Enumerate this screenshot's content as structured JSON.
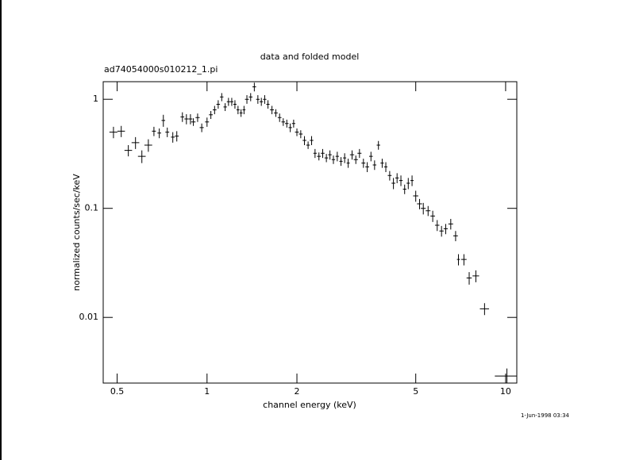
{
  "chart_data": {
    "type": "scatter",
    "title": "data and folded model",
    "subtitle": "ad74054000s010212_1.pi",
    "xlabel": "channel energy (keV)",
    "ylabel": "normalized counts/sec/keV",
    "annotation": "1-Jun-1998 03:34",
    "xscale": "log",
    "yscale": "log",
    "xlim": [
      0.449,
      10.9
    ],
    "ylim": [
      0.0025,
      1.45
    ],
    "xticks": [
      0.5,
      1,
      2,
      5,
      10
    ],
    "yticks": [
      0.01,
      0.1,
      1
    ],
    "color": "#000000",
    "x": [
      0.486,
      0.516,
      0.545,
      0.576,
      0.605,
      0.636,
      0.664,
      0.692,
      0.714,
      0.736,
      0.768,
      0.792,
      0.827,
      0.853,
      0.88,
      0.9,
      0.93,
      0.96,
      1.0,
      1.03,
      1.06,
      1.09,
      1.12,
      1.15,
      1.18,
      1.21,
      1.24,
      1.27,
      1.3,
      1.33,
      1.36,
      1.4,
      1.44,
      1.48,
      1.52,
      1.56,
      1.6,
      1.65,
      1.7,
      1.75,
      1.8,
      1.85,
      1.9,
      1.95,
      2.0,
      2.06,
      2.12,
      2.18,
      2.24,
      2.3,
      2.37,
      2.44,
      2.51,
      2.58,
      2.65,
      2.73,
      2.81,
      2.89,
      2.97,
      3.06,
      3.15,
      3.24,
      3.34,
      3.44,
      3.54,
      3.64,
      3.75,
      3.86,
      3.97,
      4.09,
      4.21,
      4.33,
      4.46,
      4.59,
      4.72,
      4.86,
      5.0,
      5.15,
      5.3,
      5.5,
      5.7,
      5.9,
      6.1,
      6.3,
      6.55,
      6.8,
      6.95,
      7.25,
      7.55,
      7.95,
      8.5,
      10.1
    ],
    "xerr": [
      0.015,
      0.015,
      0.016,
      0.017,
      0.018,
      0.019,
      0.01,
      0.01,
      0.01,
      0.011,
      0.011,
      0.012,
      0.012,
      0.013,
      0.013,
      0.015,
      0.015,
      0.015,
      0.015,
      0.015,
      0.015,
      0.015,
      0.015,
      0.015,
      0.015,
      0.015,
      0.015,
      0.015,
      0.015,
      0.015,
      0.02,
      0.02,
      0.02,
      0.02,
      0.02,
      0.02,
      0.02,
      0.025,
      0.025,
      0.025,
      0.025,
      0.025,
      0.025,
      0.025,
      0.03,
      0.03,
      0.03,
      0.03,
      0.03,
      0.03,
      0.035,
      0.035,
      0.035,
      0.035,
      0.035,
      0.035,
      0.035,
      0.035,
      0.035,
      0.05,
      0.05,
      0.05,
      0.05,
      0.05,
      0.05,
      0.05,
      0.05,
      0.05,
      0.05,
      0.06,
      0.06,
      0.06,
      0.06,
      0.06,
      0.06,
      0.06,
      0.1,
      0.1,
      0.1,
      0.1,
      0.1,
      0.1,
      0.1,
      0.1,
      0.12,
      0.12,
      0.08,
      0.15,
      0.15,
      0.2,
      0.3,
      0.9
    ],
    "values": [
      0.5,
      0.51,
      0.34,
      0.4,
      0.3,
      0.38,
      0.51,
      0.49,
      0.64,
      0.5,
      0.45,
      0.46,
      0.69,
      0.66,
      0.66,
      0.62,
      0.68,
      0.55,
      0.62,
      0.72,
      0.8,
      0.9,
      1.05,
      0.85,
      0.95,
      0.95,
      0.9,
      0.8,
      0.75,
      0.8,
      1.0,
      1.05,
      1.3,
      1.0,
      0.95,
      1.0,
      0.9,
      0.8,
      0.75,
      0.68,
      0.62,
      0.6,
      0.55,
      0.6,
      0.5,
      0.48,
      0.42,
      0.38,
      0.42,
      0.32,
      0.3,
      0.32,
      0.29,
      0.31,
      0.28,
      0.3,
      0.27,
      0.29,
      0.26,
      0.31,
      0.28,
      0.32,
      0.26,
      0.24,
      0.3,
      0.25,
      0.38,
      0.26,
      0.24,
      0.2,
      0.17,
      0.19,
      0.18,
      0.15,
      0.17,
      0.18,
      0.13,
      0.11,
      0.1,
      0.095,
      0.085,
      0.07,
      0.062,
      0.065,
      0.072,
      0.056,
      0.034,
      0.034,
      0.023,
      0.024,
      0.012,
      0.0029
    ],
    "yerr": [
      0.06,
      0.06,
      0.04,
      0.05,
      0.04,
      0.05,
      0.05,
      0.05,
      0.08,
      0.05,
      0.05,
      0.05,
      0.07,
      0.07,
      0.07,
      0.05,
      0.06,
      0.05,
      0.06,
      0.06,
      0.07,
      0.08,
      0.09,
      0.07,
      0.08,
      0.08,
      0.08,
      0.07,
      0.06,
      0.07,
      0.09,
      0.09,
      0.12,
      0.09,
      0.08,
      0.09,
      0.08,
      0.07,
      0.06,
      0.06,
      0.05,
      0.05,
      0.05,
      0.05,
      0.04,
      0.04,
      0.04,
      0.03,
      0.04,
      0.03,
      0.025,
      0.03,
      0.025,
      0.03,
      0.025,
      0.03,
      0.025,
      0.03,
      0.025,
      0.03,
      0.025,
      0.03,
      0.025,
      0.025,
      0.03,
      0.025,
      0.035,
      0.025,
      0.025,
      0.02,
      0.02,
      0.02,
      0.02,
      0.015,
      0.02,
      0.02,
      0.015,
      0.012,
      0.012,
      0.01,
      0.01,
      0.008,
      0.007,
      0.007,
      0.008,
      0.006,
      0.004,
      0.004,
      0.003,
      0.003,
      0.0015,
      0.0005
    ]
  }
}
